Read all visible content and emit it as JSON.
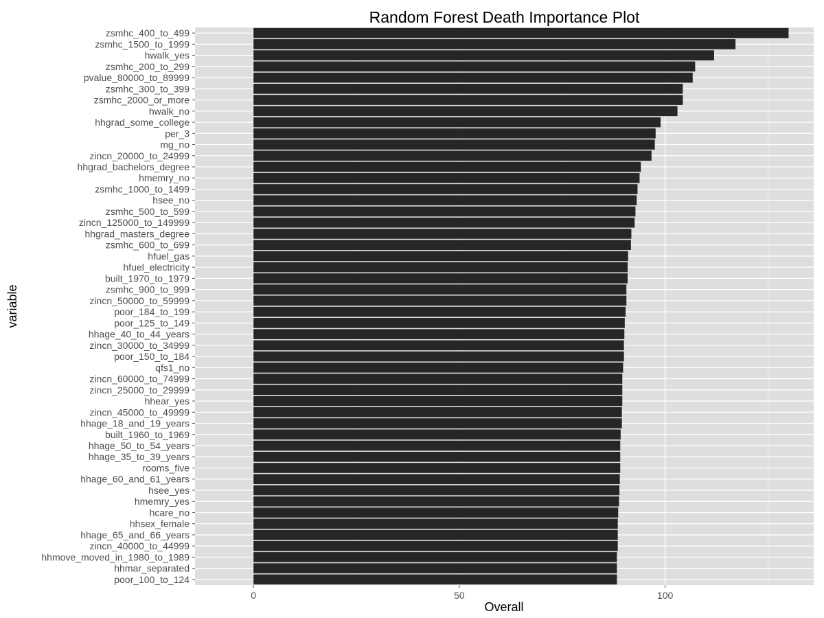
{
  "chart_data": {
    "type": "bar",
    "orientation": "horizontal",
    "title": "Random Forest Death Importance Plot",
    "xlabel": "Overall",
    "ylabel": "variable",
    "xlim": [
      -14.2,
      136.1
    ],
    "xticks": [
      0,
      50,
      100
    ],
    "grid": true,
    "bar_color": "#262626",
    "panel_background": "#dedede",
    "grid_color": "#ffffff",
    "categories": [
      "zsmhc_400_to_499",
      "zsmhc_1500_to_1999",
      "hwalk_yes",
      "zsmhc_200_to_299",
      "pvalue_80000_to_89999",
      "zsmhc_300_to_399",
      "zsmhc_2000_or_more",
      "hwalk_no",
      "hhgrad_some_college",
      "per_3",
      "mg_no",
      "zincn_20000_to_24999",
      "hhgrad_bachelors_degree",
      "hmemry_no",
      "zsmhc_1000_to_1499",
      "hsee_no",
      "zsmhc_500_to_599",
      "zincn_125000_to_149999",
      "hhgrad_masters_degree",
      "zsmhc_600_to_699",
      "hfuel_gas",
      "hfuel_electricity",
      "built_1970_to_1979",
      "zsmhc_900_to_999",
      "zincn_50000_to_59999",
      "poor_184_to_199",
      "poor_125_to_149",
      "hhage_40_to_44_years",
      "zincn_30000_to_34999",
      "poor_150_to_184",
      "qfs1_no",
      "zincn_60000_to_74999",
      "zincn_25000_to_29999",
      "hhear_yes",
      "zincn_45000_to_49999",
      "hhage_18_and_19_years",
      "built_1960_to_1969",
      "hhage_50_to_54_years",
      "hhage_35_to_39_years",
      "rooms_five",
      "hhage_60_and_61_years",
      "hsee_yes",
      "hmemry_yes",
      "hcare_no",
      "hhsex_female",
      "hhage_65_and_66_years",
      "zincn_40000_to_44999",
      "hhmove_moved_in_1980_to_1989",
      "hhmar_separated",
      "poor_100_to_124"
    ],
    "values": [
      130.0,
      117.1,
      111.9,
      107.3,
      106.7,
      104.3,
      104.3,
      103.0,
      98.9,
      97.7,
      97.5,
      96.7,
      94.1,
      93.8,
      93.3,
      93.1,
      92.8,
      92.6,
      91.8,
      91.7,
      91.0,
      90.9,
      90.9,
      90.6,
      90.6,
      90.4,
      90.2,
      90.1,
      90.0,
      90.0,
      89.8,
      89.6,
      89.6,
      89.6,
      89.5,
      89.5,
      89.2,
      89.1,
      89.1,
      89.1,
      89.0,
      88.9,
      88.8,
      88.6,
      88.5,
      88.5,
      88.5,
      88.3,
      88.3,
      88.3
    ]
  }
}
